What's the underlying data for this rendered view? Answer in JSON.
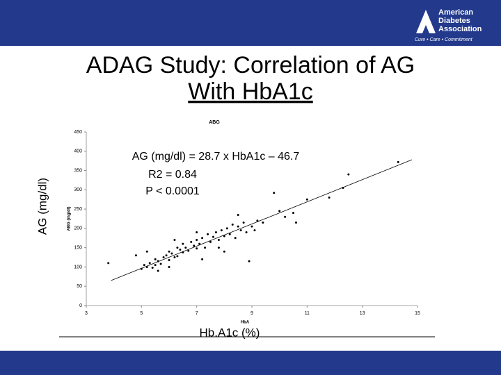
{
  "header": {
    "logo_line1": "American",
    "logo_line2": "Diabetes",
    "logo_line3": "Association",
    "tagline": "Cure • Care • Commitment"
  },
  "title_line1": "ADAG Study: Correlation of AG",
  "title_line2": "With HbA1c",
  "y_label": "AG (mg/dl)",
  "x_label": "Hb.A1c (%)",
  "chart_data": {
    "type": "scatter",
    "title": "ABG",
    "y_axis_label": "ABG (mg/dl)",
    "x_axis_label": "HbA",
    "annotations": [
      "AG (mg/dl) = 28.7 x HbA1c – 46.7",
      "R2 = 0.84",
      "P < 0.0001"
    ],
    "color": "#000000",
    "xlim": [
      3,
      15
    ],
    "ylim": [
      0,
      450
    ],
    "xticks": [
      3,
      5,
      7,
      9,
      11,
      13,
      15
    ],
    "yticks": [
      0,
      50,
      100,
      150,
      200,
      250,
      300,
      350,
      400,
      450
    ],
    "x": [
      3.8,
      5.0,
      5.1,
      5.2,
      5.3,
      5.4,
      5.5,
      5.5,
      5.6,
      5.7,
      5.8,
      5.9,
      6.0,
      6.0,
      6.1,
      6.2,
      6.3,
      6.3,
      6.4,
      6.5,
      6.5,
      6.6,
      6.7,
      6.8,
      6.9,
      7.0,
      7.0,
      7.1,
      7.2,
      7.3,
      7.4,
      7.5,
      7.6,
      7.7,
      7.8,
      7.9,
      8.0,
      8.1,
      8.2,
      8.3,
      8.4,
      8.5,
      8.6,
      8.7,
      8.8,
      9.0,
      9.2,
      9.4,
      5.2,
      6.0,
      7.2,
      8.0,
      8.9,
      7.8,
      10.0,
      10.5,
      10.6,
      11.8,
      12.3,
      12.5,
      14.3,
      11.0,
      9.8,
      10.2,
      7.0,
      6.2,
      8.5,
      9.1,
      4.8,
      5.6
    ],
    "values": [
      110,
      95,
      105,
      100,
      110,
      98,
      120,
      105,
      115,
      108,
      125,
      130,
      118,
      140,
      135,
      125,
      150,
      128,
      145,
      138,
      160,
      150,
      142,
      165,
      155,
      148,
      170,
      160,
      175,
      150,
      185,
      165,
      178,
      190,
      170,
      195,
      180,
      200,
      185,
      210,
      175,
      205,
      195,
      215,
      190,
      205,
      220,
      215,
      140,
      100,
      120,
      140,
      115,
      150,
      245,
      240,
      215,
      280,
      305,
      340,
      372,
      275,
      292,
      230,
      190,
      170,
      235,
      195,
      130,
      90
    ],
    "trend_line": {
      "x": [
        3.9,
        14.8
      ],
      "values": [
        65,
        378
      ]
    }
  }
}
